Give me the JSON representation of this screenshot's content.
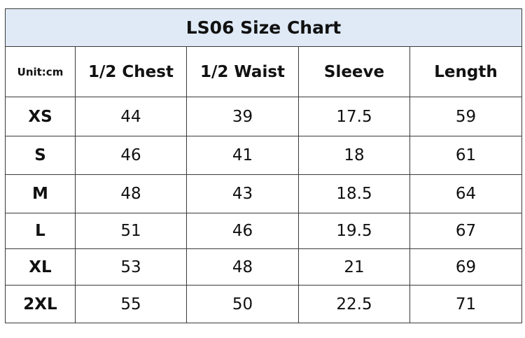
{
  "title": "LS06 Size Chart",
  "table": {
    "header": [
      "Unit:cm",
      "1/2 Chest",
      "1/2 Waist",
      "Sleeve",
      "Length"
    ],
    "rows": [
      [
        "XS",
        44,
        39,
        17.5,
        59
      ],
      [
        "S",
        46,
        41,
        18,
        61
      ],
      [
        "M",
        48,
        43,
        18.5,
        64
      ],
      [
        "L",
        51,
        46,
        19.5,
        67
      ],
      [
        "XL",
        53,
        48,
        21,
        69
      ],
      [
        "2XL",
        55,
        50,
        22.5,
        71
      ]
    ]
  }
}
